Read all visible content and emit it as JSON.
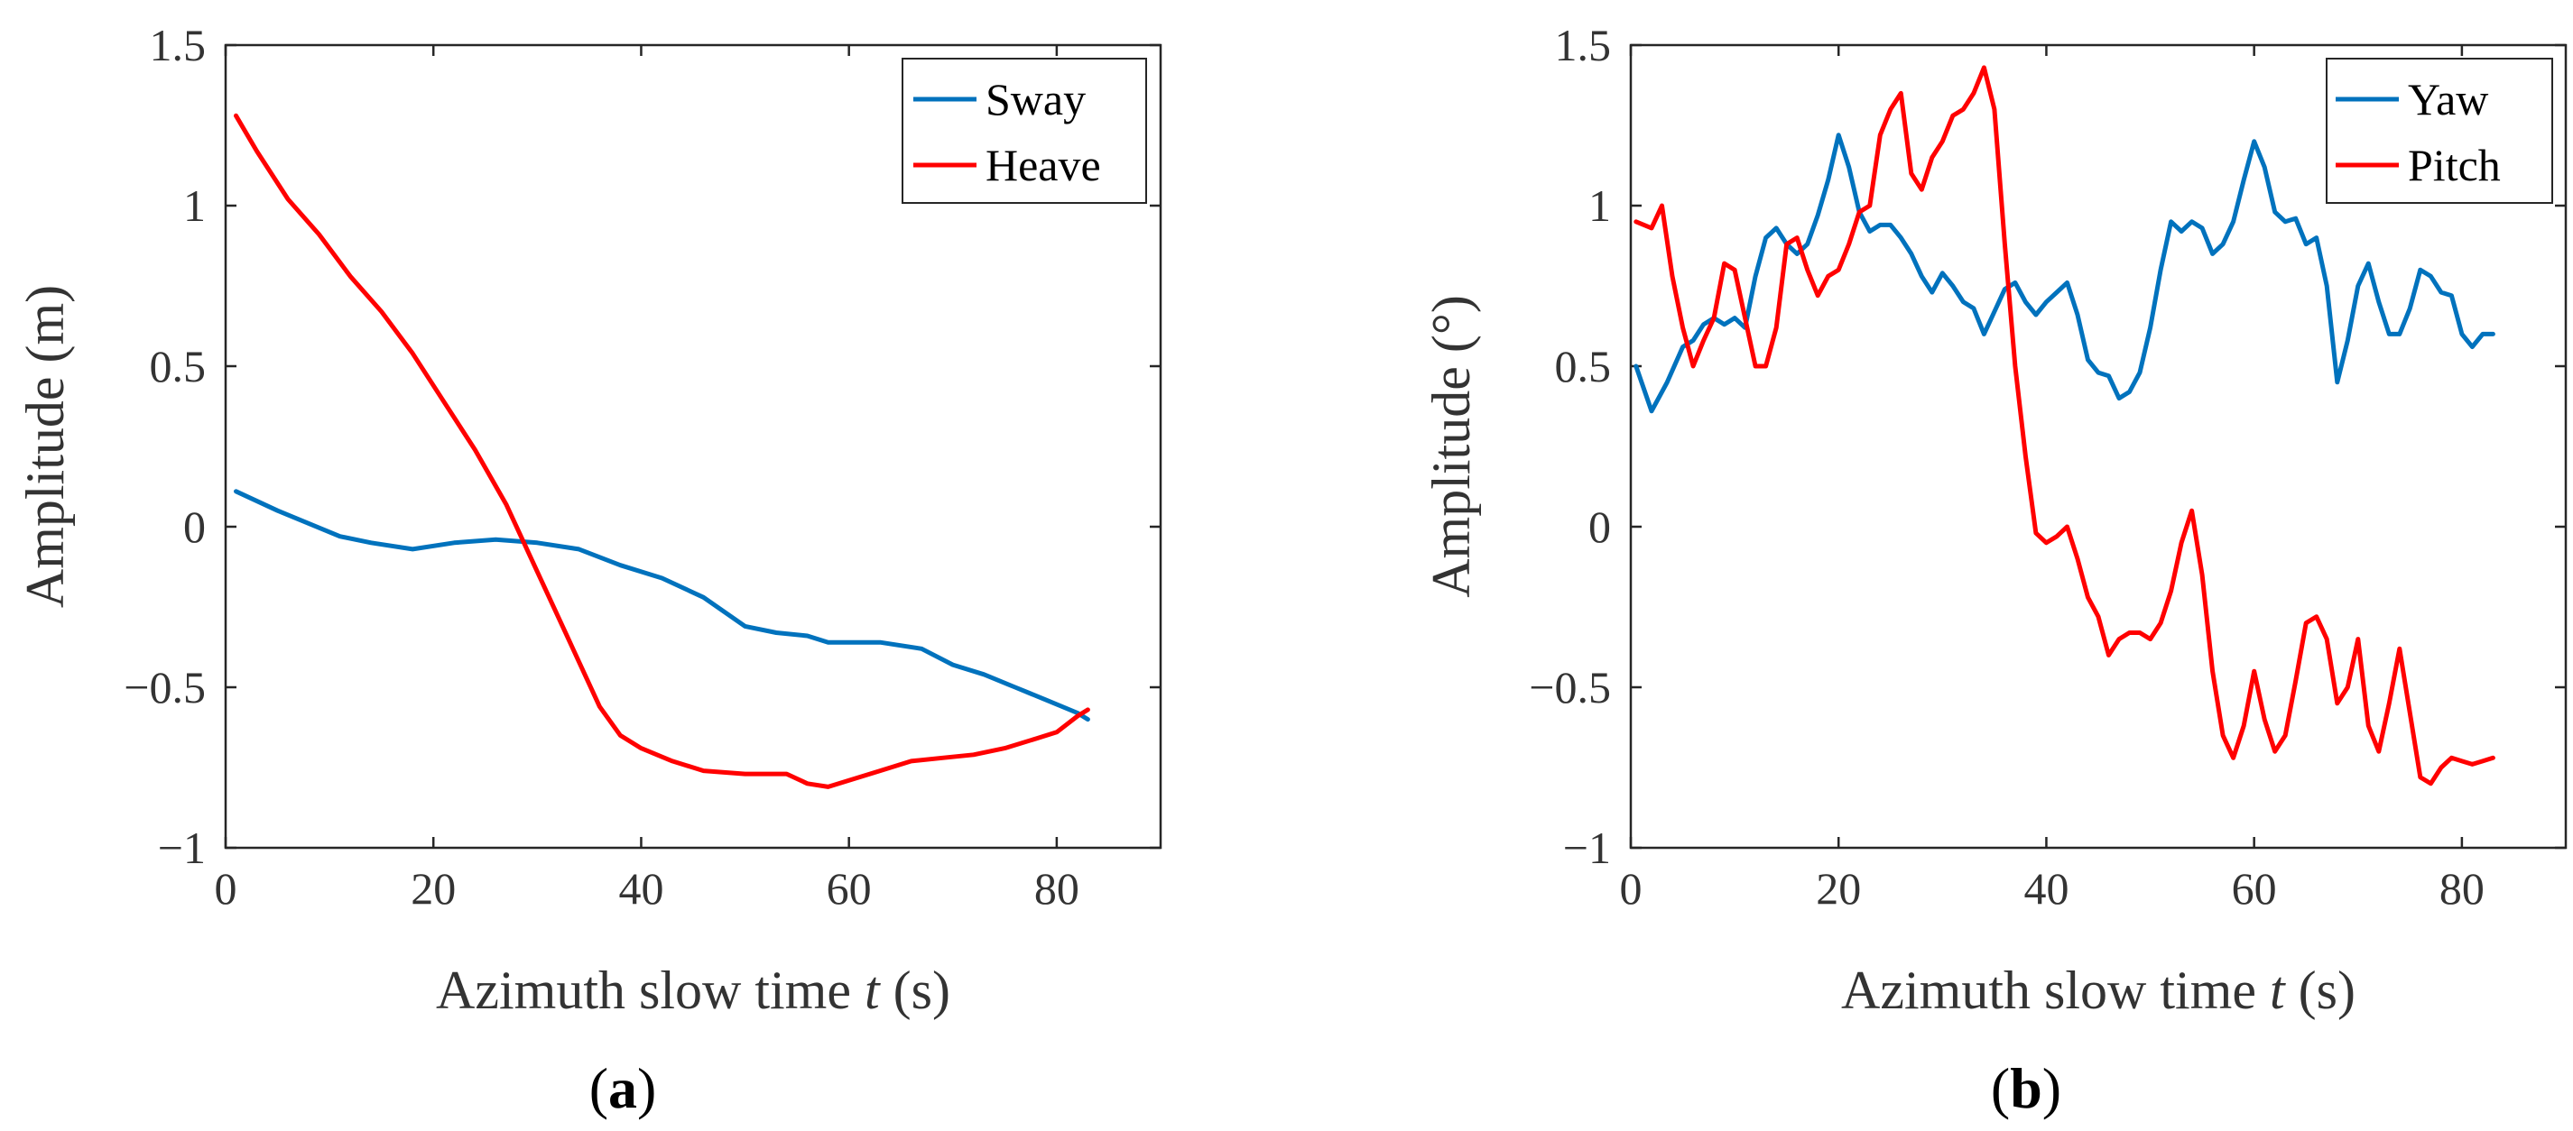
{
  "chart_data": [
    {
      "type": "line",
      "panel": "a",
      "caption": "a",
      "xlabel_pre": "Azimuth slow time ",
      "xlabel_var": "t",
      "xlabel_post": " (s)",
      "ylabel": "Amplitude (m)",
      "xlim": [
        0,
        90
      ],
      "ylim": [
        -1,
        1.5
      ],
      "xticks": [
        0,
        20,
        40,
        60,
        80
      ],
      "xtick_labels": [
        "0",
        "20",
        "40",
        "60",
        "80"
      ],
      "yticks": [
        -1,
        -0.5,
        0,
        0.5,
        1,
        1.5
      ],
      "ytick_labels": [
        "−1",
        "−0.5",
        "0",
        "0.5",
        "1",
        "1.5"
      ],
      "legend_position": "top-right",
      "series": [
        {
          "name": "Sway",
          "color": "#0072BD",
          "x": [
            1,
            5,
            8,
            11,
            14,
            18,
            22,
            26,
            30,
            34,
            38,
            42,
            46,
            50,
            53,
            56,
            58,
            60,
            63,
            67,
            70,
            73,
            76,
            79,
            82,
            83
          ],
          "y": [
            0.11,
            0.05,
            0.01,
            -0.03,
            -0.05,
            -0.07,
            -0.05,
            -0.04,
            -0.05,
            -0.07,
            -0.12,
            -0.16,
            -0.22,
            -0.31,
            -0.33,
            -0.34,
            -0.36,
            -0.36,
            -0.36,
            -0.38,
            -0.43,
            -0.46,
            -0.5,
            -0.54,
            -0.58,
            -0.6
          ]
        },
        {
          "name": "Heave",
          "color": "#FF0000",
          "x": [
            1,
            3,
            6,
            9,
            12,
            15,
            18,
            21,
            24,
            27,
            30,
            33,
            36,
            38,
            40,
            43,
            46,
            50,
            54,
            56,
            58,
            60,
            63,
            66,
            69,
            72,
            75,
            78,
            80,
            82,
            83
          ],
          "y": [
            1.28,
            1.17,
            1.02,
            0.91,
            0.78,
            0.67,
            0.54,
            0.39,
            0.24,
            0.07,
            -0.14,
            -0.35,
            -0.56,
            -0.65,
            -0.69,
            -0.73,
            -0.76,
            -0.77,
            -0.77,
            -0.8,
            -0.81,
            -0.79,
            -0.76,
            -0.73,
            -0.72,
            -0.71,
            -0.69,
            -0.66,
            -0.64,
            -0.59,
            -0.57
          ]
        }
      ]
    },
    {
      "type": "line",
      "panel": "b",
      "caption": "b",
      "xlabel_pre": "Azimuth slow time ",
      "xlabel_var": "t",
      "xlabel_post": " (s)",
      "ylabel": "Amplitude (°)",
      "xlim": [
        0,
        90
      ],
      "ylim": [
        -1,
        1.5
      ],
      "xticks": [
        0,
        20,
        40,
        60,
        80
      ],
      "xtick_labels": [
        "0",
        "20",
        "40",
        "60",
        "80"
      ],
      "yticks": [
        -1,
        -0.5,
        0,
        0.5,
        1,
        1.5
      ],
      "ytick_labels": [
        "−1",
        "−0.5",
        "0",
        "0.5",
        "1",
        "1.5"
      ],
      "legend_position": "top-right",
      "series": [
        {
          "name": "Yaw",
          "color": "#0072BD",
          "x": [
            0.5,
            2,
            3.5,
            5,
            6,
            7,
            8,
            9,
            10,
            11,
            12,
            13,
            14,
            15,
            16,
            17,
            18,
            19,
            20,
            21,
            22,
            23,
            24,
            25,
            26,
            27,
            28,
            29,
            30,
            31,
            32,
            33,
            34,
            35,
            36,
            37,
            38,
            39,
            40,
            41,
            42,
            43,
            44,
            45,
            46,
            47,
            48,
            49,
            50,
            51,
            52,
            53,
            54,
            55,
            56,
            57,
            58,
            59,
            60,
            61,
            62,
            63,
            64,
            65,
            66,
            67,
            68,
            69,
            70,
            71,
            72,
            73,
            74,
            75,
            76,
            77,
            78,
            79,
            80,
            81,
            82,
            83
          ],
          "y": [
            0.5,
            0.36,
            0.45,
            0.56,
            0.58,
            0.63,
            0.65,
            0.63,
            0.65,
            0.62,
            0.78,
            0.9,
            0.93,
            0.88,
            0.85,
            0.88,
            0.97,
            1.08,
            1.22,
            1.12,
            0.98,
            0.92,
            0.94,
            0.94,
            0.9,
            0.85,
            0.78,
            0.73,
            0.79,
            0.75,
            0.7,
            0.68,
            0.6,
            0.67,
            0.74,
            0.76,
            0.7,
            0.66,
            0.7,
            0.73,
            0.76,
            0.66,
            0.52,
            0.48,
            0.47,
            0.4,
            0.42,
            0.48,
            0.62,
            0.8,
            0.95,
            0.92,
            0.95,
            0.93,
            0.85,
            0.88,
            0.95,
            1.08,
            1.2,
            1.12,
            0.98,
            0.95,
            0.96,
            0.88,
            0.9,
            0.75,
            0.45,
            0.58,
            0.75,
            0.82,
            0.7,
            0.6,
            0.6,
            0.68,
            0.8,
            0.78,
            0.73,
            0.72,
            0.6,
            0.56,
            0.6,
            0.6
          ]
        },
        {
          "name": "Pitch",
          "color": "#FF0000",
          "x": [
            0.5,
            2,
            3,
            4,
            5,
            6,
            7,
            8,
            9,
            10,
            11,
            12,
            13,
            14,
            15,
            16,
            17,
            18,
            19,
            20,
            21,
            22,
            23,
            24,
            25,
            26,
            27,
            28,
            29,
            30,
            31,
            32,
            33,
            34,
            35,
            36,
            37,
            38,
            39,
            40,
            41,
            42,
            43,
            44,
            45,
            46,
            47,
            48,
            49,
            50,
            51,
            52,
            53,
            54,
            55,
            56,
            57,
            58,
            59,
            60,
            61,
            62,
            63,
            64,
            65,
            66,
            67,
            68,
            69,
            70,
            71,
            72,
            73,
            74,
            75,
            76,
            77,
            78,
            79,
            80,
            81,
            82,
            83
          ],
          "y": [
            0.95,
            0.93,
            1.0,
            0.78,
            0.62,
            0.5,
            0.58,
            0.65,
            0.82,
            0.8,
            0.65,
            0.5,
            0.5,
            0.62,
            0.88,
            0.9,
            0.8,
            0.72,
            0.78,
            0.8,
            0.88,
            0.98,
            1.0,
            1.22,
            1.3,
            1.35,
            1.1,
            1.05,
            1.15,
            1.2,
            1.28,
            1.3,
            1.35,
            1.43,
            1.3,
            0.88,
            0.5,
            0.22,
            -0.02,
            -0.05,
            -0.03,
            0.0,
            -0.1,
            -0.22,
            -0.28,
            -0.4,
            -0.35,
            -0.33,
            -0.33,
            -0.35,
            -0.3,
            -0.2,
            -0.05,
            0.05,
            -0.15,
            -0.45,
            -0.65,
            -0.72,
            -0.62,
            -0.45,
            -0.6,
            -0.7,
            -0.65,
            -0.48,
            -0.3,
            -0.28,
            -0.35,
            -0.55,
            -0.5,
            -0.35,
            -0.62,
            -0.7,
            -0.55,
            -0.38,
            -0.58,
            -0.78,
            -0.8,
            -0.75,
            -0.72,
            -0.73,
            -0.74,
            -0.73,
            -0.72
          ]
        }
      ]
    }
  ]
}
